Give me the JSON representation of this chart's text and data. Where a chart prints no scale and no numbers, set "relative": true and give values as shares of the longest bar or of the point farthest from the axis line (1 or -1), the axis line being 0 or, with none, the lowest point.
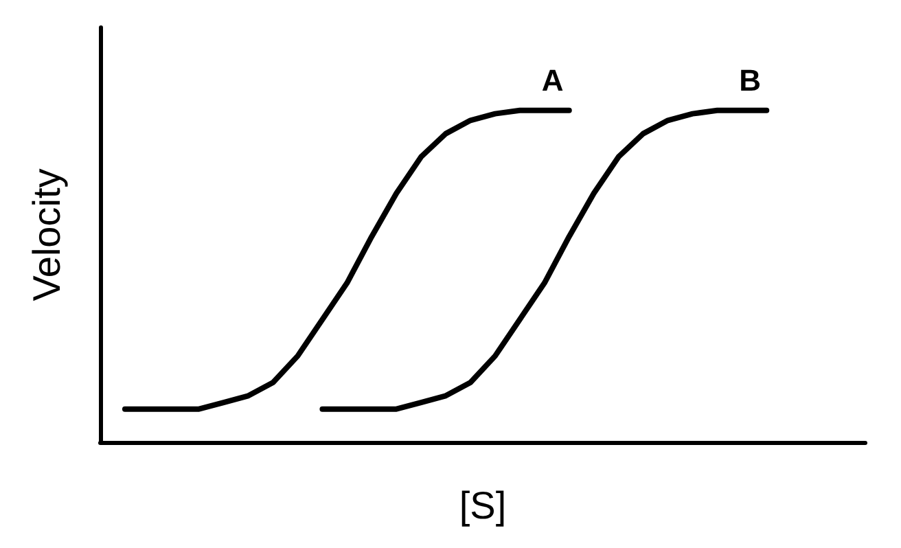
{
  "chart_data": {
    "type": "line",
    "relative": true,
    "xlabel": "[S]",
    "ylabel": "Velocity",
    "categories": [
      null,
      null,
      null,
      null,
      null,
      null,
      null,
      null,
      null,
      null,
      null,
      null,
      null,
      null,
      null,
      null,
      null,
      null,
      null,
      null,
      null,
      null,
      null,
      null,
      null,
      null,
      null,
      null,
      null,
      null,
      null,
      null
    ],
    "series": [
      {
        "name": "A",
        "color": "#000000",
        "values": [
          null,
          0.1,
          0.1,
          0.1,
          0.1,
          0.12,
          0.14,
          0.18,
          0.26,
          0.37,
          0.48,
          0.62,
          0.75,
          0.86,
          0.93,
          0.97,
          0.99,
          1,
          1,
          1,
          null,
          null,
          null,
          null,
          null,
          null,
          null,
          null,
          null,
          null,
          null,
          null
        ]
      },
      {
        "name": "B",
        "color": "#000000",
        "values": [
          null,
          null,
          null,
          null,
          null,
          null,
          null,
          null,
          null,
          0.1,
          0.1,
          0.1,
          0.1,
          0.12,
          0.14,
          0.18,
          0.26,
          0.37,
          0.48,
          0.62,
          0.75,
          0.86,
          0.93,
          0.97,
          0.99,
          1,
          1,
          1,
          null,
          null,
          null,
          null
        ]
      }
    ],
    "grid": false,
    "legend": false,
    "marker": "none",
    "line_style": "solid"
  }
}
